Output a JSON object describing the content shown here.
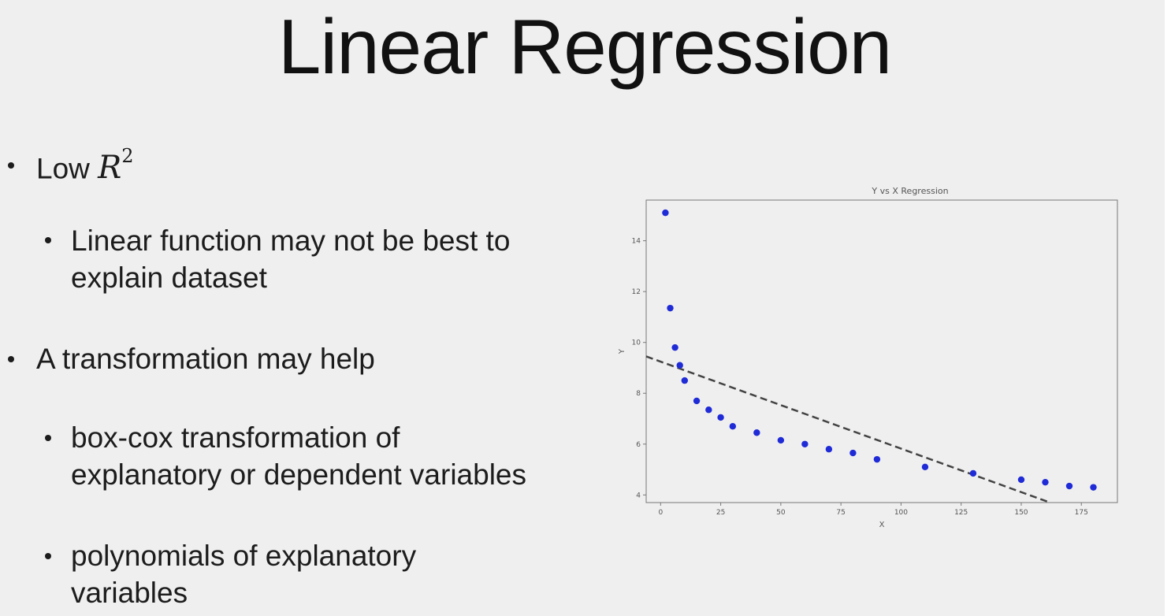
{
  "slide": {
    "title": "Linear Regression",
    "bullets": [
      {
        "level": 1,
        "lines": [
          "Low "
        ],
        "math": {
          "base": "R",
          "exp": "2"
        }
      },
      {
        "level": 2,
        "lines": [
          "Linear function may not be best to",
          "explain dataset"
        ]
      },
      {
        "level": 1,
        "lines": [
          "A transformation may help"
        ]
      },
      {
        "level": 2,
        "lines": [
          "box-cox transformation of",
          "explanatory or dependent variables"
        ]
      },
      {
        "level": 2,
        "lines": [
          "polynomials of explanatory",
          "variables"
        ]
      }
    ]
  },
  "chart_data": {
    "type": "scatter",
    "title": "Y vs X Regression",
    "xlabel": "X",
    "ylabel": "Y",
    "xlim": [
      -6,
      190
    ],
    "ylim": [
      3.7,
      15.6
    ],
    "xticks": [
      0,
      25,
      50,
      75,
      100,
      125,
      150,
      175
    ],
    "yticks": [
      4,
      6,
      8,
      10,
      12,
      14
    ],
    "grid": false,
    "points": {
      "x": [
        2,
        4,
        6,
        8,
        10,
        15,
        20,
        25,
        30,
        40,
        50,
        60,
        70,
        80,
        90,
        110,
        130,
        150,
        160,
        170,
        180
      ],
      "y": [
        15.1,
        11.35,
        9.8,
        9.1,
        8.5,
        7.7,
        7.35,
        7.05,
        6.7,
        6.45,
        6.15,
        6.0,
        5.8,
        5.65,
        5.4,
        5.1,
        4.85,
        4.6,
        4.5,
        4.35,
        4.3
      ]
    },
    "fit_line": {
      "style": "dashed",
      "x": [
        -6,
        162
      ],
      "y": [
        9.45,
        3.7
      ]
    },
    "colors": {
      "points": "#1f2bd6",
      "line": "#444444",
      "frame": "#777777"
    }
  }
}
